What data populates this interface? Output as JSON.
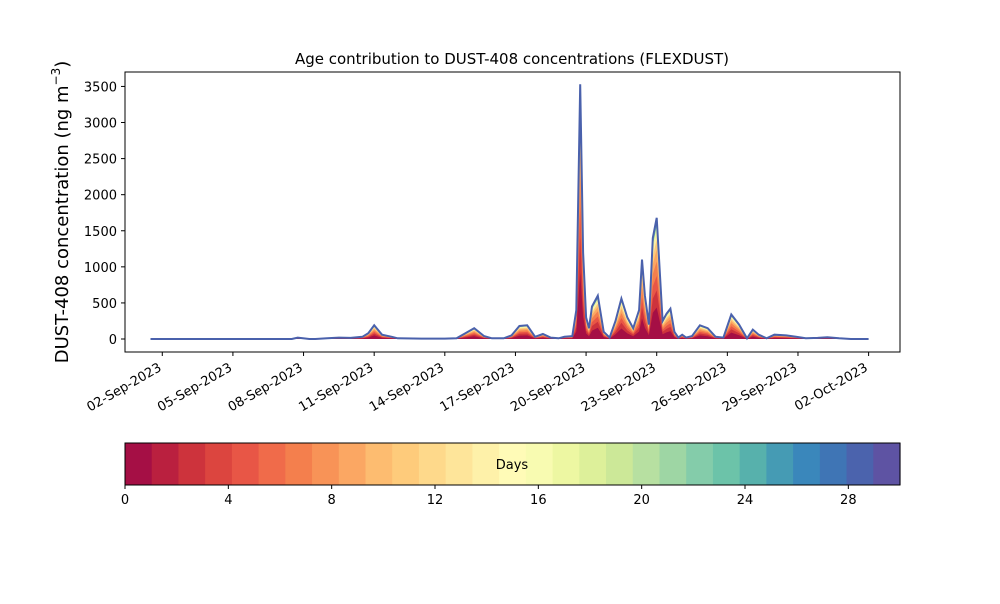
{
  "chart_data": {
    "type": "area",
    "title": "Age contribution to DUST-408 concentrations (FLEXDUST)",
    "ylabel": "DUST-408 concentration (ng m",
    "ylabel_superscript": "−3",
    "ylabel_close": ")",
    "xlabel": "",
    "ylim": [
      -180,
      3700
    ],
    "yticks": [
      0,
      500,
      1000,
      1500,
      2000,
      2500,
      3000,
      3500
    ],
    "xlim": [
      "2023-08-31T10:00",
      "2023-10-03T08:00"
    ],
    "x_tick_labels": [
      "02-Sep-2023",
      "05-Sep-2023",
      "08-Sep-2023",
      "11-Sep-2023",
      "14-Sep-2023",
      "17-Sep-2023",
      "20-Sep-2023",
      "23-Sep-2023",
      "26-Sep-2023",
      "29-Sep-2023",
      "02-Oct-2023"
    ],
    "x_ticks": [
      "2023-09-02",
      "2023-09-05",
      "2023-09-08",
      "2023-09-11",
      "2023-09-14",
      "2023-09-17",
      "2023-09-20",
      "2023-09-23",
      "2023-09-26",
      "2023-09-29",
      "2023-10-02"
    ],
    "grid": false,
    "total_series": {
      "x": [
        "2023-09-01T12:00",
        "2023-09-04T00:00",
        "2023-09-06T00:00",
        "2023-09-07T12:00",
        "2023-09-07T18:00",
        "2023-09-08T06:00",
        "2023-09-08T12:00",
        "2023-09-09T00:00",
        "2023-09-09T12:00",
        "2023-09-10T00:00",
        "2023-09-10T12:00",
        "2023-09-10T18:00",
        "2023-09-11T00:00",
        "2023-09-11T08:00",
        "2023-09-11T18:00",
        "2023-09-12T00:00",
        "2023-09-13T00:00",
        "2023-09-14T00:00",
        "2023-09-14T12:00",
        "2023-09-14T21:00",
        "2023-09-15T06:00",
        "2023-09-15T16:00",
        "2023-09-16T00:00",
        "2023-09-16T12:00",
        "2023-09-16T20:00",
        "2023-09-17T04:00",
        "2023-09-17T12:00",
        "2023-09-17T20:00",
        "2023-09-18T04:00",
        "2023-09-18T12:00",
        "2023-09-18T20:00",
        "2023-09-19T02:00",
        "2023-09-19T10:00",
        "2023-09-19T14:00",
        "2023-09-19T18:00",
        "2023-09-19T21:00",
        "2023-09-20T00:00",
        "2023-09-20T03:00",
        "2023-09-20T06:00",
        "2023-09-20T12:00",
        "2023-09-20T18:00",
        "2023-09-21T00:00",
        "2023-09-21T06:00",
        "2023-09-21T12:00",
        "2023-09-21T18:00",
        "2023-09-22T00:00",
        "2023-09-22T06:00",
        "2023-09-22T09:00",
        "2023-09-22T12:00",
        "2023-09-22T16:00",
        "2023-09-22T20:00",
        "2023-09-23T00:00",
        "2023-09-23T06:00",
        "2023-09-23T10:00",
        "2023-09-23T14:00",
        "2023-09-23T18:00",
        "2023-09-23T22:00",
        "2023-09-24T02:00",
        "2023-09-24T06:00",
        "2023-09-24T12:00",
        "2023-09-24T20:00",
        "2023-09-25T04:00",
        "2023-09-25T12:00",
        "2023-09-25T20:00",
        "2023-09-26T04:00",
        "2023-09-26T12:00",
        "2023-09-26T20:00",
        "2023-09-27T02:00",
        "2023-09-27T08:00",
        "2023-09-27T16:00",
        "2023-09-28T00:00",
        "2023-09-28T12:00",
        "2023-09-28T22:00",
        "2023-09-29T08:00",
        "2023-09-29T20:00",
        "2023-09-30T06:00",
        "2023-09-30T18:00",
        "2023-10-01T06:00",
        "2023-10-01T18:00",
        "2023-10-02T00:00"
      ],
      "y": [
        0,
        0,
        0,
        0,
        20,
        0,
        0,
        10,
        20,
        15,
        30,
        80,
        190,
        60,
        30,
        10,
        5,
        5,
        10,
        80,
        150,
        40,
        10,
        10,
        50,
        180,
        190,
        30,
        70,
        20,
        10,
        30,
        40,
        400,
        3530,
        1200,
        300,
        150,
        450,
        600,
        100,
        20,
        250,
        560,
        300,
        150,
        400,
        1100,
        600,
        200,
        1400,
        1680,
        250,
        350,
        420,
        100,
        20,
        60,
        20,
        40,
        190,
        150,
        30,
        20,
        340,
        200,
        10,
        130,
        60,
        10,
        60,
        50,
        30,
        10,
        15,
        25,
        10,
        0,
        0,
        0
      ]
    },
    "colorbar": {
      "label": "Days",
      "range": [
        0,
        30
      ],
      "ticks": [
        0,
        4,
        8,
        12,
        16,
        20,
        24,
        28
      ],
      "colors": [
        "#a50f45",
        "#ba203f",
        "#cd333c",
        "#dc453f",
        "#e85646",
        "#f06b4a",
        "#f47f4d",
        "#f89357",
        "#fba763",
        "#fdbc70",
        "#fecb7b",
        "#fed98b",
        "#fee59a",
        "#fef1a9",
        "#fffbb7",
        "#f8fbb1",
        "#edf7a2",
        "#ddf09a",
        "#cce898",
        "#b7e0a1",
        "#9ed6a4",
        "#84ccaa",
        "#6cc3a9",
        "#57b1ac",
        "#459bb4",
        "#3a87bb",
        "#3f75b5",
        "#4b63ad",
        "#5e53a3"
      ]
    }
  }
}
